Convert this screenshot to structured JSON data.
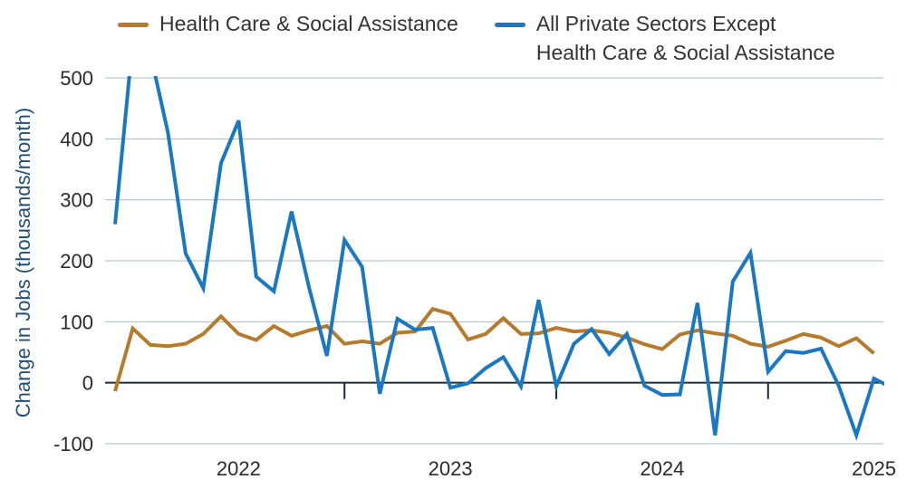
{
  "chart_data": {
    "type": "line",
    "title": "",
    "xlabel": "",
    "ylabel": "Change in Jobs (thousands/month)",
    "ylim": [
      -100,
      500
    ],
    "yticks": [
      500,
      400,
      300,
      200,
      100,
      0,
      -100
    ],
    "grid": "horizontal",
    "legend_position": "top",
    "x": [
      "2021-08",
      "2021-09",
      "2021-10",
      "2021-11",
      "2021-12",
      "2022-01",
      "2022-02",
      "2022-03",
      "2022-04",
      "2022-05",
      "2022-06",
      "2022-07",
      "2022-08",
      "2022-09",
      "2022-10",
      "2022-11",
      "2022-12",
      "2023-01",
      "2023-02",
      "2023-03",
      "2023-04",
      "2023-05",
      "2023-06",
      "2023-07",
      "2023-08",
      "2023-09",
      "2023-10",
      "2023-11",
      "2023-12",
      "2024-01",
      "2024-02",
      "2024-03",
      "2024-04",
      "2024-05",
      "2024-06",
      "2024-07",
      "2024-08",
      "2024-09",
      "2024-10",
      "2024-11",
      "2024-12",
      "2025-01",
      "2025-02",
      "2025-03",
      "2025-04",
      "2025-05",
      "2025-06"
    ],
    "x_tick_labels": [
      {
        "label": "2022",
        "at": "2022-03"
      },
      {
        "label": "2023",
        "at": "2023-03"
      },
      {
        "label": "2024",
        "at": "2024-03"
      },
      {
        "label": "2025",
        "at": "2025-03"
      }
    ],
    "x_tick_marks": [
      "2022-09",
      "2023-09",
      "2024-09"
    ],
    "series": [
      {
        "name": "Health Care & Social Assistance",
        "color": "#b57a2b",
        "values": [
          -14,
          89,
          62,
          60,
          64,
          80,
          109,
          80,
          70,
          93,
          77,
          86,
          93,
          64,
          68,
          64,
          82,
          84,
          121,
          113,
          71,
          80,
          106,
          80,
          81,
          90,
          84,
          86,
          82,
          74,
          63,
          55,
          79,
          86,
          81,
          77,
          64,
          59,
          69,
          80,
          74,
          60,
          73,
          48,
          null,
          null,
          null
        ]
      },
      {
        "name": "All Private Sectors Except\nHealth Care & Social Assistance",
        "color": "#1a78c2",
        "values": [
          260,
          560,
          540,
          410,
          212,
          155,
          360,
          430,
          174,
          150,
          281,
          155,
          44,
          234,
          190,
          -18,
          105,
          87,
          90,
          -8,
          -1,
          24,
          42,
          -6,
          136,
          -6,
          64,
          88,
          47,
          80,
          -5,
          -20,
          -19,
          131,
          -86,
          166,
          213,
          18,
          52,
          49,
          56,
          -5,
          -86,
          7,
          -8,
          null,
          null
        ]
      }
    ]
  }
}
